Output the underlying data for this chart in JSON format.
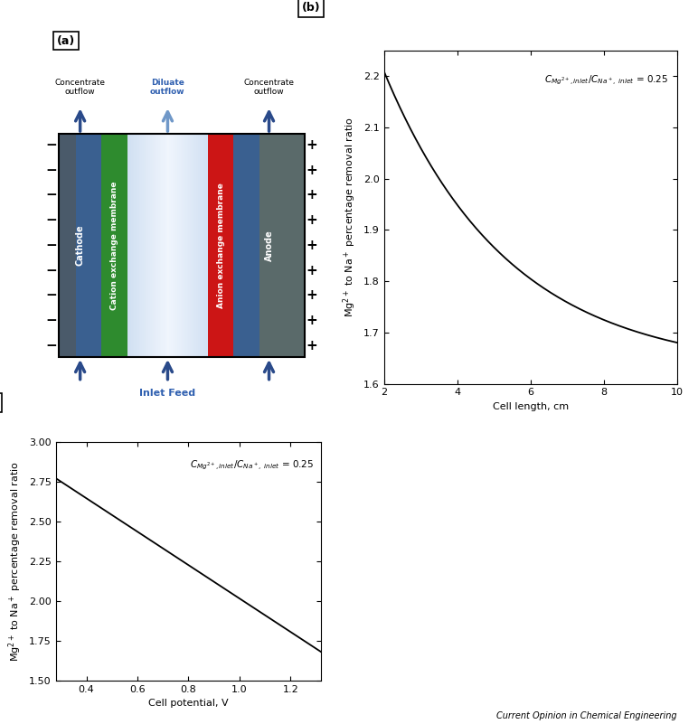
{
  "panel_b": {
    "x_start": 2,
    "x_end": 10,
    "x_ticks": [
      2,
      4,
      6,
      8,
      10
    ],
    "y_start": 1.6,
    "y_end": 2.25,
    "y_ticks": [
      1.6,
      1.7,
      1.8,
      1.9,
      2.0,
      2.1,
      2.2
    ],
    "xlabel": "Cell length, cm",
    "ylabel": "Mg$^{2+}$ to Na$^+$ percentage removal ratio",
    "annotation_b": "$C_{Mg^{2+},inlet}/C_{Na^+,\\ inlet}$ = 0.25"
  },
  "panel_c": {
    "x_start": 0.28,
    "x_end": 1.32,
    "x_ticks": [
      0.4,
      0.6,
      0.8,
      1.0,
      1.2
    ],
    "y_start": 1.5,
    "y_end": 3.0,
    "y_ticks": [
      1.5,
      1.75,
      2.0,
      2.25,
      2.5,
      2.75,
      3.0
    ],
    "xlabel": "Cell potential, V",
    "ylabel": "Mg$^{2+}$ to Na$^+$ percentage removal ratio",
    "annotation_c": "$C_{Mg^{2+},inlet}/C_{Na^+,\\ inlet}$ = 0.25"
  },
  "diagram": {
    "cathode_dark": "#4a5a6a",
    "cathode_blue": "#3a6090",
    "cation_mem_color": "#2e8b2e",
    "diluate_light": "#d0e4f0",
    "diluate_mid": "#a0c0dc",
    "anion_mem_color": "#cc1515",
    "anode_color": "#5a6a6a",
    "arrow_dark_blue": "#2a4a8a",
    "arrow_light_blue": "#7098c8",
    "inlet_text_color": "#3060b0",
    "diluate_text_color": "#3060b0"
  },
  "footer_text": "Current Opinion in Chemical Engineering",
  "bg_color": "#ffffff",
  "panel_label_fontsize": 9,
  "axis_fontsize": 8,
  "tick_fontsize": 8
}
